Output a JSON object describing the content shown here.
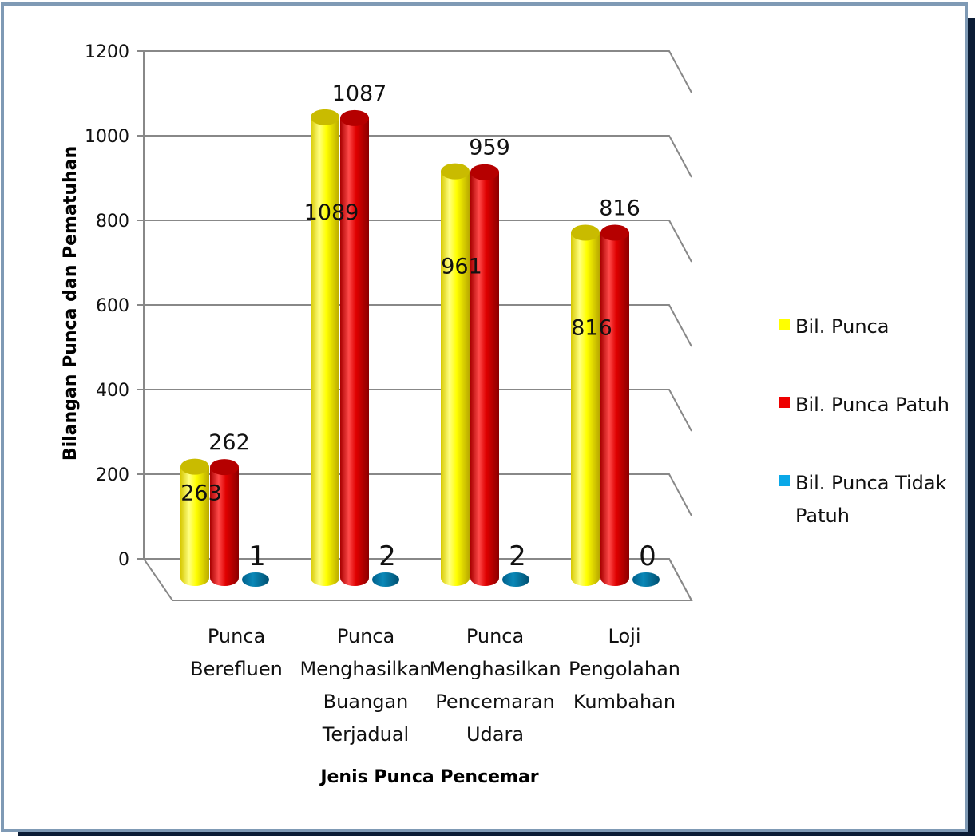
{
  "chart_data": {
    "type": "bar",
    "xlabel": "Jenis Punca Pencemar",
    "ylabel": "Bilangan Punca dan Pematuhan",
    "ylim": [
      0,
      1200
    ],
    "yticks": [
      0,
      200,
      400,
      600,
      800,
      1000,
      1200
    ],
    "grid": true,
    "legend_position": "right",
    "categories": [
      [
        "Punca",
        "Berefluen"
      ],
      [
        "Punca",
        "Menghasilkan",
        "Buangan",
        "Terjadual"
      ],
      [
        "Punca",
        "Menghasilkan",
        "Pencemaran",
        "Udara"
      ],
      [
        "Loji",
        "Pengolahan",
        "Kumbahan"
      ]
    ],
    "series": [
      {
        "name": "Bil. Punca",
        "color": "#ffff00",
        "values": [
          263,
          1089,
          961,
          816
        ]
      },
      {
        "name": "Bil. Punca Patuh",
        "color": "#ee0000",
        "values": [
          262,
          1087,
          959,
          816
        ]
      },
      {
        "name": "Bil. Punca Tidak Patuh",
        "color": "#0099dd",
        "values": [
          1,
          2,
          2,
          0
        ]
      }
    ]
  }
}
